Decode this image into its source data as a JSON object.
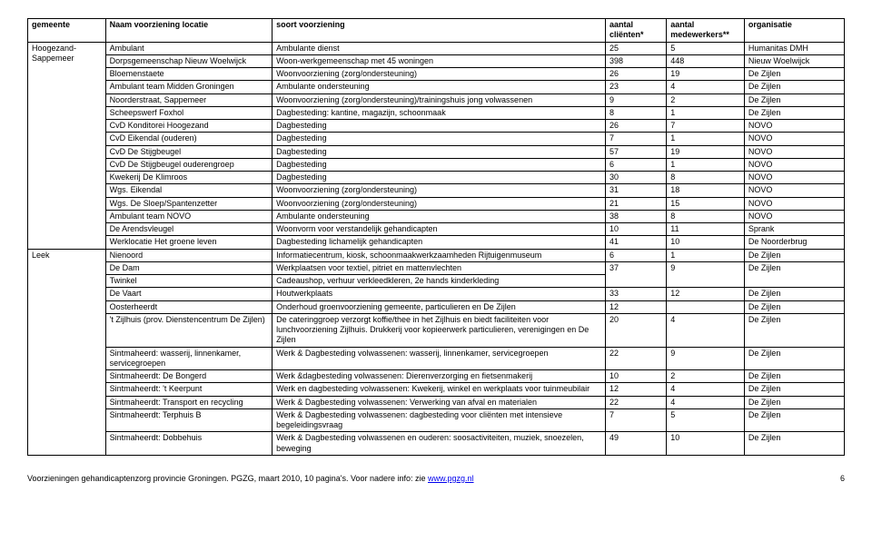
{
  "headers": {
    "gemeente": "gemeente",
    "locatie": "Naam voorziening\nlocatie",
    "soort": "soort voorziening",
    "clienten": "aantal cliënten*",
    "medewerkers": "aantal medewerkers**",
    "organisatie": "organisatie"
  },
  "gemeenten": [
    {
      "key": "hoog-sap",
      "label": "Hoogezand-Sappemeer"
    },
    {
      "key": "leek",
      "label": "Leek"
    }
  ],
  "rows": [
    {
      "g": "hoog-sap",
      "loc": "Ambulant",
      "soort": "Ambulante dienst",
      "cl": "25",
      "mw": "5",
      "org": "Humanitas DMH"
    },
    {
      "g": "hoog-sap",
      "loc": "Dorpsgemeenschap Nieuw Woelwijck",
      "soort": "Woon-werkgemeenschap met 45 woningen",
      "cl": "398",
      "mw": "448",
      "org": "Nieuw Woelwijck"
    },
    {
      "g": "hoog-sap",
      "loc": "Bloemenstaete",
      "soort": "Woonvoorziening (zorg/ondersteuning)",
      "cl": "26",
      "mw": "19",
      "org": "De Zijlen"
    },
    {
      "g": "hoog-sap",
      "loc": "Ambulant team Midden Groningen",
      "soort": "Ambulante ondersteuning",
      "cl": "23",
      "mw": "4",
      "org": "De Zijlen"
    },
    {
      "g": "hoog-sap",
      "loc": "Noorderstraat, Sappemeer",
      "soort": "Woonvoorziening (zorg/ondersteuning)/trainingshuis jong volwassenen",
      "cl": "9",
      "mw": "2",
      "org": "De Zijlen"
    },
    {
      "g": "hoog-sap",
      "loc": "Scheepswerf Foxhol",
      "soort": "Dagbesteding: kantine, magazijn, schoonmaak",
      "cl": "8",
      "mw": "1",
      "org": "De Zijlen"
    },
    {
      "g": "hoog-sap",
      "loc": "CvD Konditorei Hoogezand",
      "soort": "Dagbesteding",
      "cl": "26",
      "mw": "7",
      "org": "NOVO"
    },
    {
      "g": "hoog-sap",
      "loc": "CvD Eikendal (ouderen)",
      "soort": "Dagbesteding",
      "cl": "7",
      "mw": "1",
      "org": "NOVO"
    },
    {
      "g": "hoog-sap",
      "loc": "CvD De Stijgbeugel",
      "soort": "Dagbesteding",
      "cl": "57",
      "mw": "19",
      "org": "NOVO"
    },
    {
      "g": "hoog-sap",
      "loc": "CvD De Stijgbeugel ouderengroep",
      "soort": "Dagbesteding",
      "cl": "6",
      "mw": "1",
      "org": "NOVO"
    },
    {
      "g": "hoog-sap",
      "loc": "Kwekerij De Klimroos",
      "soort": "Dagbesteding",
      "cl": "30",
      "mw": "8",
      "org": "NOVO"
    },
    {
      "g": "hoog-sap",
      "loc": "Wgs. Eikendal",
      "soort": "Woonvoorziening (zorg/ondersteuning)",
      "cl": "31",
      "mw": "18",
      "org": "NOVO"
    },
    {
      "g": "hoog-sap",
      "loc": "Wgs. De Sloep/Spantenzetter",
      "soort": "Woonvoorziening (zorg/ondersteuning)",
      "cl": "21",
      "mw": "15",
      "org": "NOVO"
    },
    {
      "g": "hoog-sap",
      "loc": "Ambulant team NOVO",
      "soort": "Ambulante ondersteuning",
      "cl": "38",
      "mw": "8",
      "org": "NOVO"
    },
    {
      "g": "hoog-sap",
      "loc": "De Arendsvleugel",
      "soort": "Woonvorm voor verstandelijk gehandicapten",
      "cl": "10",
      "mw": "11",
      "org": "Sprank"
    },
    {
      "g": "hoog-sap",
      "loc": "Werklocatie Het groene leven",
      "soort": "Dagbesteding lichamelijk gehandicapten",
      "cl": "41",
      "mw": "10",
      "org": "De Noorderbrug"
    },
    {
      "g": "leek",
      "loc": "Nienoord",
      "soort": "Informatiecentrum, kiosk, schoonmaakwerkzaamheden Rijtuigenmuseum",
      "cl": "6",
      "mw": "1",
      "org": "De Zijlen"
    },
    {
      "g": "leek",
      "loc": "De Dam",
      "soort": "Werkplaatsen voor textiel, pitriet en mattenvlechten",
      "cl": "",
      "mw": "",
      "org": "",
      "merge": "top"
    },
    {
      "g": "leek",
      "loc": "Twinkel",
      "soort": "Cadeaushop, verhuur verkleedkleren, 2e hands kinderkleding",
      "cl": "37",
      "mw": "9",
      "org": "De Zijlen",
      "merge": "bottom"
    },
    {
      "g": "leek",
      "loc": "De Vaart",
      "soort": "Houtwerkplaats",
      "cl": "33",
      "mw": "12",
      "org": "De Zijlen"
    },
    {
      "g": "leek",
      "loc": "Oosterheerdt",
      "soort": "Onderhoud groenvoorziening gemeente, particulieren en De Zijlen",
      "cl": "12",
      "mw": "",
      "org": "De Zijlen"
    },
    {
      "g": "leek",
      "loc": "'t Zijlhuis (prov. Dienstencentrum De Zijlen)",
      "soort": "De cateringgroep verzorgt koffie/thee in het Zijlhuis en biedt faciliteiten voor lunchvoorziening Zijlhuis.\nDrukkerij voor kopieerwerk particulieren, verenigingen en De Zijlen",
      "cl": "20",
      "mw": "4",
      "org": "De Zijlen"
    },
    {
      "g": "leek",
      "loc": "Sintmaheerd: wasserij, linnenkamer, servicegroepen",
      "soort": "Werk & Dagbesteding volwassenen: wasserij, linnenkamer, servicegroepen",
      "cl": "22",
      "mw": "9",
      "org": "De Zijlen"
    },
    {
      "g": "leek",
      "loc": "Sintmaheerdt: De Bongerd",
      "soort": "Werk &dagbesteding volwassenen: Dierenverzorging en fietsenmakerij",
      "cl": "10",
      "mw": "2",
      "org": "De Zijlen"
    },
    {
      "g": "leek",
      "loc": "Sintmaheerdt: 't Keerpunt",
      "soort": "Werk en dagbesteding volwassenen: Kwekerij, winkel en werkplaats voor tuinmeubilair",
      "cl": "12",
      "mw": "4",
      "org": "De Zijlen"
    },
    {
      "g": "leek",
      "loc": "Sintmaheerdt: Transport en recycling",
      "soort": "Werk & Dagbesteding volwassenen: Verwerking van afval en materialen",
      "cl": "22",
      "mw": "4",
      "org": "De Zijlen"
    },
    {
      "g": "leek",
      "loc": "Sintmaheerdt: Terphuis B",
      "soort": "Werk & Dagbesteding volwassenen: dagbesteding voor cliënten met intensieve begeleidingsvraag",
      "cl": "7",
      "mw": "5",
      "org": "De Zijlen"
    },
    {
      "g": "leek",
      "loc": "Sintmaheerdt: Dobbehuis",
      "soort": "Werk & Dagbesteding volwassenen en ouderen: soosactiviteiten, muziek, snoezelen, beweging",
      "cl": "49",
      "mw": "10",
      "org": "De Zijlen"
    }
  ],
  "footer": {
    "left_prefix": "Voorzieningen gehandicaptenzorg provincie Groningen. PGZG, maart 2010, 10 pagina's. Voor nadere info: zie ",
    "link_text": "www.pgzg.nl",
    "page": "6"
  }
}
